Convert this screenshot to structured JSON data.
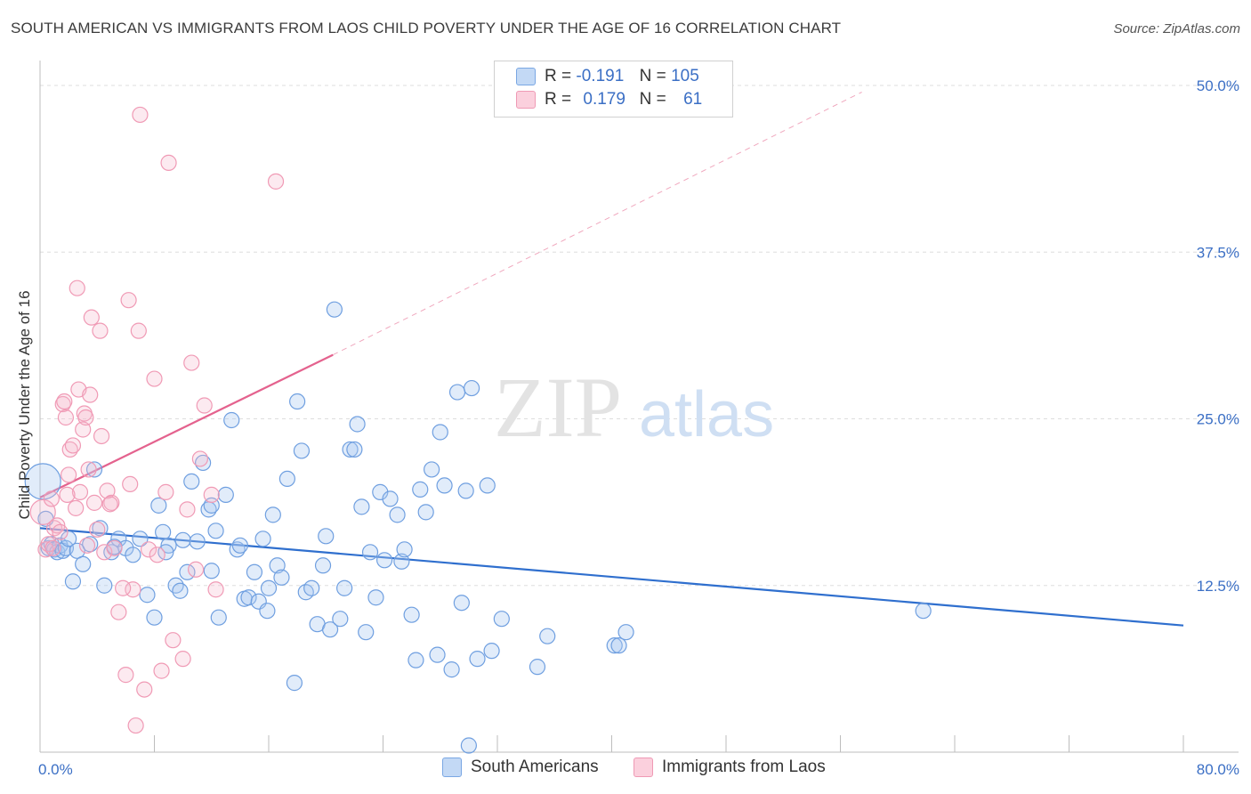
{
  "title": "SOUTH AMERICAN VS IMMIGRANTS FROM LAOS CHILD POVERTY UNDER THE AGE OF 16 CORRELATION CHART",
  "source": "Source: ZipAtlas.com",
  "watermark": {
    "zip": "ZIP",
    "atlas": "atlas"
  },
  "legend": {
    "rows": [
      {
        "r_label": "R =",
        "r_value": "-0.191",
        "n_label": "N =",
        "n_value": "105",
        "color": "#a9c8f0"
      },
      {
        "r_label": "R =",
        "r_value": "0.179",
        "n_label": "N =",
        "n_value": "61",
        "color": "#f6b8cc"
      }
    ]
  },
  "bottom_legend": [
    "South Americans",
    "Immigrants from Laos"
  ],
  "chart_data": {
    "type": "scatter",
    "title": "SOUTH AMERICAN VS IMMIGRANTS FROM LAOS CHILD POVERTY UNDER THE AGE OF 16 CORRELATION CHART",
    "xlabel": "",
    "ylabel": "Child Poverty Under the Age of 16",
    "xlim": [
      0,
      80
    ],
    "ylim": [
      0,
      50
    ],
    "x_tick_labels": [
      "0.0%",
      "80.0%"
    ],
    "y_ticks": [
      12.5,
      25.0,
      37.5,
      50.0
    ],
    "y_tick_labels": [
      "12.5%",
      "25.0%",
      "37.5%",
      "50.0%"
    ],
    "grid": true,
    "legend_position": "top-center",
    "series": [
      {
        "name": "South Americans",
        "color": "#5b93e0",
        "trend": {
          "x": [
            0,
            80
          ],
          "y": [
            16.8,
            9.5
          ],
          "color": "#2f6fce"
        },
        "points": [
          [
            0.2,
            20.3
          ],
          [
            0.4,
            17.5
          ],
          [
            0.6,
            15.3
          ],
          [
            0.8,
            15.6
          ],
          [
            1.0,
            15.2
          ],
          [
            1.2,
            15.0
          ],
          [
            1.4,
            15.5
          ],
          [
            1.6,
            15.1
          ],
          [
            1.8,
            15.3
          ],
          [
            2.0,
            16.0
          ],
          [
            2.3,
            12.8
          ],
          [
            2.6,
            15.1
          ],
          [
            3.0,
            14.1
          ],
          [
            3.5,
            15.6
          ],
          [
            3.8,
            21.2
          ],
          [
            4.2,
            16.8
          ],
          [
            4.5,
            12.5
          ],
          [
            5.0,
            15.0
          ],
          [
            5.5,
            16.0
          ],
          [
            6.0,
            15.3
          ],
          [
            6.5,
            14.8
          ],
          [
            7.0,
            16.0
          ],
          [
            7.5,
            11.8
          ],
          [
            8.0,
            10.1
          ],
          [
            8.3,
            18.5
          ],
          [
            8.6,
            16.5
          ],
          [
            9.0,
            15.5
          ],
          [
            9.5,
            12.5
          ],
          [
            9.8,
            12.1
          ],
          [
            10.0,
            15.9
          ],
          [
            10.3,
            13.5
          ],
          [
            10.6,
            20.3
          ],
          [
            11.0,
            15.8
          ],
          [
            11.4,
            21.7
          ],
          [
            11.8,
            18.2
          ],
          [
            12.0,
            13.6
          ],
          [
            12.3,
            16.6
          ],
          [
            12.5,
            10.1
          ],
          [
            13.0,
            19.3
          ],
          [
            13.4,
            24.9
          ],
          [
            13.8,
            15.2
          ],
          [
            14.0,
            15.5
          ],
          [
            14.3,
            11.5
          ],
          [
            14.6,
            11.6
          ],
          [
            15.0,
            13.5
          ],
          [
            15.3,
            11.3
          ],
          [
            15.6,
            16.0
          ],
          [
            15.9,
            10.6
          ],
          [
            16.0,
            12.3
          ],
          [
            16.3,
            17.8
          ],
          [
            16.6,
            14.0
          ],
          [
            16.9,
            13.1
          ],
          [
            17.3,
            20.5
          ],
          [
            17.8,
            5.2
          ],
          [
            18.0,
            26.3
          ],
          [
            18.3,
            22.6
          ],
          [
            18.6,
            12.0
          ],
          [
            19.0,
            12.3
          ],
          [
            19.4,
            9.6
          ],
          [
            19.8,
            14.0
          ],
          [
            20.0,
            16.2
          ],
          [
            20.3,
            9.2
          ],
          [
            20.6,
            33.2
          ],
          [
            21.0,
            10.0
          ],
          [
            21.3,
            12.3
          ],
          [
            21.7,
            22.7
          ],
          [
            22.0,
            22.7
          ],
          [
            22.2,
            24.6
          ],
          [
            22.5,
            18.4
          ],
          [
            22.8,
            9.0
          ],
          [
            23.1,
            15.0
          ],
          [
            23.5,
            11.6
          ],
          [
            23.8,
            19.5
          ],
          [
            24.1,
            14.4
          ],
          [
            24.5,
            19.0
          ],
          [
            25.0,
            17.8
          ],
          [
            25.3,
            14.3
          ],
          [
            25.5,
            15.2
          ],
          [
            26.0,
            10.3
          ],
          [
            26.3,
            6.9
          ],
          [
            26.6,
            19.7
          ],
          [
            27.0,
            18.0
          ],
          [
            27.4,
            21.2
          ],
          [
            27.8,
            7.3
          ],
          [
            28.0,
            24.0
          ],
          [
            28.3,
            20.0
          ],
          [
            28.8,
            6.2
          ],
          [
            29.2,
            27.0
          ],
          [
            29.5,
            11.2
          ],
          [
            29.8,
            19.6
          ],
          [
            30.2,
            27.3
          ],
          [
            30.6,
            7.0
          ],
          [
            31.3,
            20.0
          ],
          [
            31.6,
            7.6
          ],
          [
            32.3,
            10.0
          ],
          [
            34.8,
            6.4
          ],
          [
            35.5,
            8.7
          ],
          [
            40.2,
            8.0
          ],
          [
            40.5,
            8.0
          ],
          [
            41.0,
            9.0
          ],
          [
            30.0,
            0.5
          ],
          [
            61.8,
            10.6
          ],
          [
            5.2,
            15.4
          ],
          [
            12.0,
            18.5
          ],
          [
            8.8,
            15.0
          ]
        ]
      },
      {
        "name": "Immigrants from Laos",
        "color": "#f090ad",
        "trend": {
          "x": [
            0,
            20.5
          ],
          "y": [
            19.1,
            29.8
          ],
          "color": "#e4628e",
          "dashed_x": [
            20.5,
            57.5
          ],
          "dashed_y": [
            29.8,
            49.5
          ]
        },
        "points": [
          [
            0.2,
            18.0
          ],
          [
            0.4,
            15.2
          ],
          [
            0.6,
            15.6
          ],
          [
            0.8,
            19.0
          ],
          [
            1.0,
            16.8
          ],
          [
            1.2,
            17.0
          ],
          [
            1.4,
            16.5
          ],
          [
            1.6,
            26.1
          ],
          [
            1.7,
            26.3
          ],
          [
            1.8,
            25.1
          ],
          [
            2.0,
            20.8
          ],
          [
            2.1,
            22.7
          ],
          [
            2.3,
            23.0
          ],
          [
            2.5,
            18.3
          ],
          [
            2.7,
            27.2
          ],
          [
            2.8,
            19.5
          ],
          [
            3.0,
            24.2
          ],
          [
            3.1,
            25.4
          ],
          [
            3.2,
            25.1
          ],
          [
            3.4,
            21.2
          ],
          [
            3.5,
            26.8
          ],
          [
            3.6,
            32.6
          ],
          [
            3.8,
            18.7
          ],
          [
            4.0,
            16.7
          ],
          [
            4.2,
            31.6
          ],
          [
            4.3,
            23.7
          ],
          [
            4.5,
            15.0
          ],
          [
            4.7,
            19.6
          ],
          [
            5.0,
            18.7
          ],
          [
            5.2,
            15.3
          ],
          [
            5.5,
            10.5
          ],
          [
            6.0,
            5.8
          ],
          [
            6.2,
            33.9
          ],
          [
            6.5,
            12.2
          ],
          [
            6.7,
            2.0
          ],
          [
            6.9,
            31.6
          ],
          [
            7.0,
            47.8
          ],
          [
            7.3,
            4.7
          ],
          [
            7.6,
            15.2
          ],
          [
            8.0,
            28.0
          ],
          [
            8.2,
            14.8
          ],
          [
            8.5,
            6.1
          ],
          [
            8.8,
            19.5
          ],
          [
            9.0,
            44.2
          ],
          [
            9.3,
            8.4
          ],
          [
            10.0,
            7.0
          ],
          [
            10.3,
            18.2
          ],
          [
            10.6,
            29.2
          ],
          [
            10.9,
            13.7
          ],
          [
            11.2,
            22.0
          ],
          [
            11.5,
            26.0
          ],
          [
            12.0,
            19.3
          ],
          [
            12.3,
            12.2
          ],
          [
            16.5,
            42.8
          ],
          [
            2.6,
            34.8
          ],
          [
            4.9,
            18.6
          ],
          [
            3.3,
            15.5
          ],
          [
            1.9,
            19.3
          ],
          [
            0.9,
            15.3
          ],
          [
            6.3,
            20.1
          ],
          [
            5.8,
            12.3
          ]
        ]
      }
    ]
  }
}
